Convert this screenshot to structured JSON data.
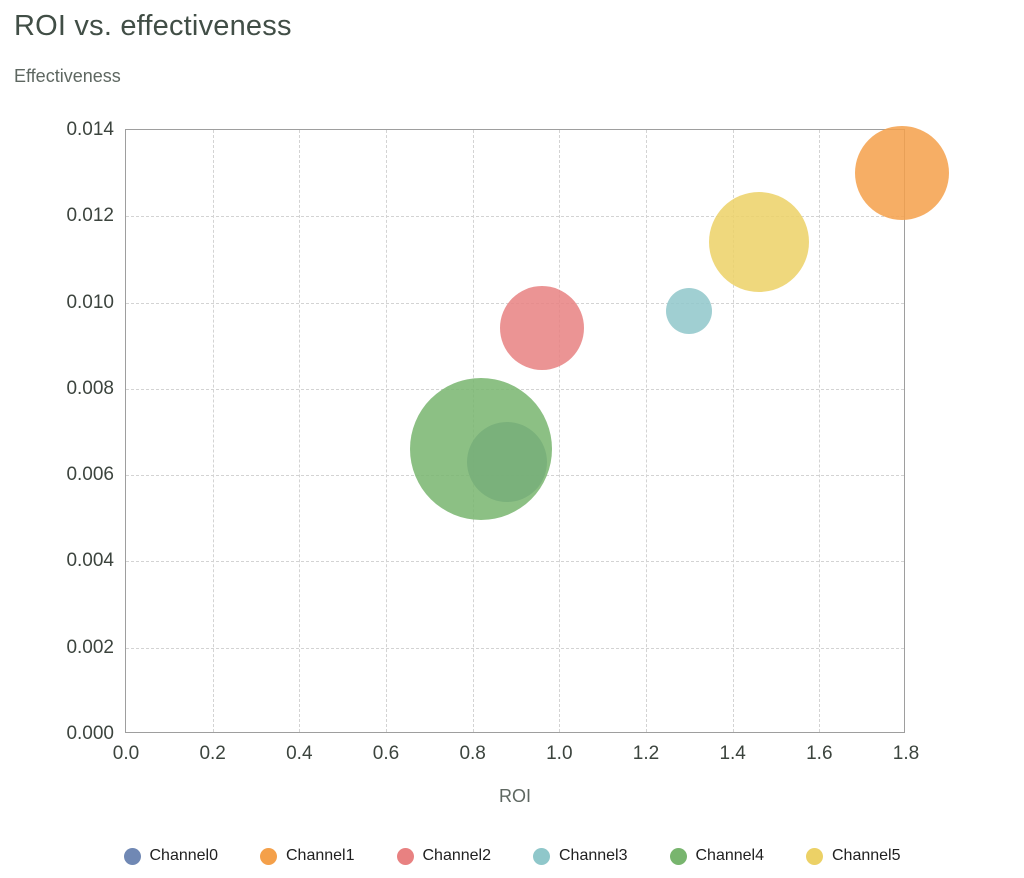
{
  "page": {
    "background": "#ffffff"
  },
  "chart_data": {
    "type": "bubble",
    "title": "ROI vs. effectiveness",
    "xlabel": "ROI",
    "ylabel": "Effectiveness",
    "xlim": [
      0,
      1.8
    ],
    "ylim": [
      0,
      0.014
    ],
    "x_ticks": [
      0.0,
      0.2,
      0.4,
      0.6,
      0.8,
      1.0,
      1.2,
      1.4,
      1.6,
      1.8
    ],
    "x_tick_labels": [
      "0.0",
      "0.2",
      "0.4",
      "0.6",
      "0.8",
      "1.0",
      "1.2",
      "1.4",
      "1.6",
      "1.8"
    ],
    "y_ticks": [
      0.0,
      0.002,
      0.004,
      0.006,
      0.008,
      0.01,
      0.012,
      0.014
    ],
    "y_tick_labels": [
      "0.000",
      "0.002",
      "0.004",
      "0.006",
      "0.008",
      "0.010",
      "0.012",
      "0.014"
    ],
    "grid": "dashed",
    "legend_position": "bottom",
    "series": [
      {
        "name": "Channel0",
        "color": "#7088b4",
        "x": 0.88,
        "y": 0.0063,
        "radius_px": 40
      },
      {
        "name": "Channel1",
        "color": "#f4a04a",
        "x": 1.79,
        "y": 0.013,
        "radius_px": 47
      },
      {
        "name": "Channel2",
        "color": "#e88181",
        "x": 0.96,
        "y": 0.0094,
        "radius_px": 42
      },
      {
        "name": "Channel3",
        "color": "#8fc7ca",
        "x": 1.3,
        "y": 0.0098,
        "radius_px": 23
      },
      {
        "name": "Channel4",
        "color": "#78b56e",
        "x": 0.82,
        "y": 0.0066,
        "radius_px": 71
      },
      {
        "name": "Channel5",
        "color": "#ecd166",
        "x": 1.46,
        "y": 0.0114,
        "radius_px": 50
      }
    ]
  }
}
